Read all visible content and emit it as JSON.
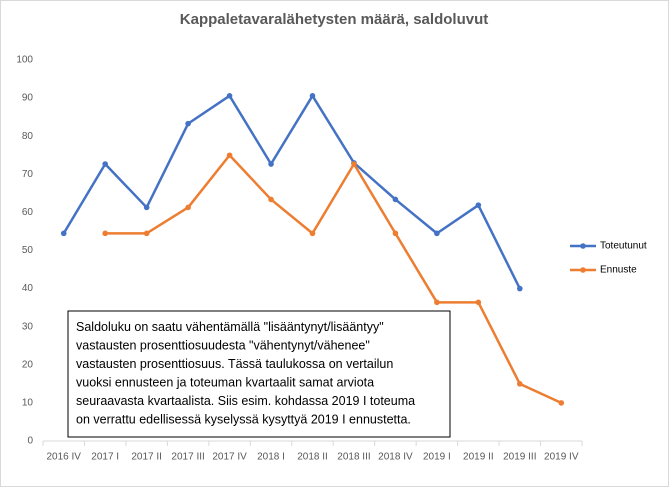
{
  "chart_data": {
    "type": "line",
    "title": "Kappaletavaralähetysten määrä, saldoluvut",
    "categories": [
      "2016 IV",
      "2017 I",
      "2017 II",
      "2017 III",
      "2017 IV",
      "2018 I",
      "2018 II",
      "2018 III",
      "2018 IV",
      "2019 I",
      "2019 II",
      "2019 III",
      "2019 IV"
    ],
    "series": [
      {
        "name": "Toteutunut",
        "color": "#4472c4",
        "values": [
          54.5,
          72.7,
          61.3,
          83.3,
          90.6,
          72.7,
          90.6,
          73,
          63.4,
          54.5,
          61.9,
          40,
          null
        ]
      },
      {
        "name": "Ennuste",
        "color": "#ed7d31",
        "values": [
          null,
          54.5,
          54.5,
          61.3,
          75,
          63.4,
          54.5,
          72.7,
          54.5,
          36.4,
          36.4,
          15,
          10
        ]
      }
    ],
    "ylim": [
      0,
      100
    ],
    "yticks": [
      0,
      10,
      20,
      30,
      40,
      50,
      60,
      70,
      80,
      90,
      100
    ],
    "grid": false,
    "legend": "right",
    "annotation": [
      "Saldoluku on saatu vähentämällä \"lisääntynyt/lisääntyy\"",
      "vastausten prosenttiosuudesta \"vähentynyt/vähenee\"",
      "vastausten prosenttiosuus. Tässä taulukossa on vertailun",
      "vuoksi ennusteen ja toteuman kvartaalit  samat arviota",
      "seuraavasta kvartaalista. Siis esim. kohdassa 2019 I toteuma",
      "on verrattu edellisessä kyselyssä kysyttyä 2019 I ennustetta."
    ]
  }
}
